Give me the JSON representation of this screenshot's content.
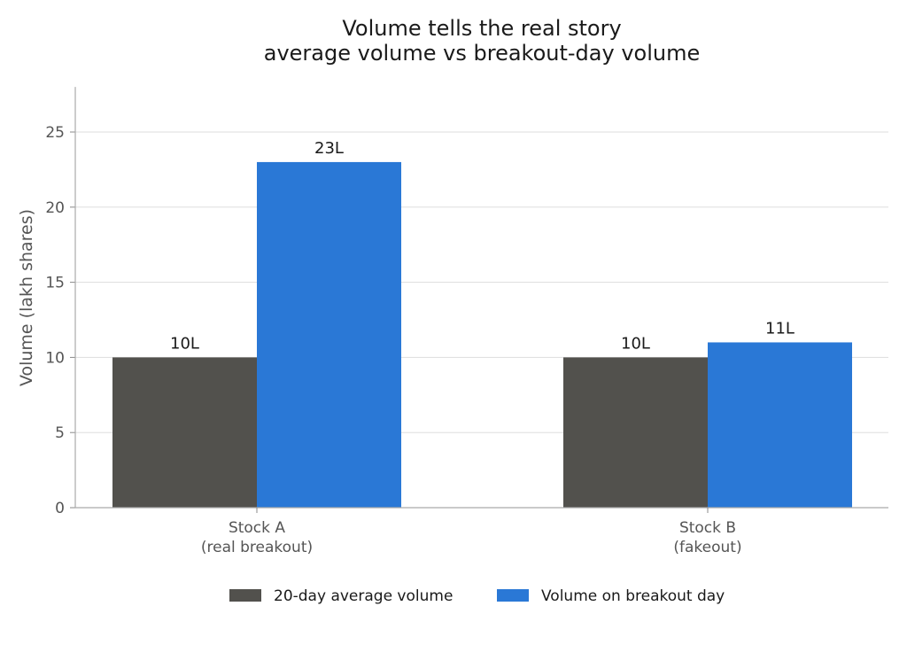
{
  "chart_data": {
    "type": "bar",
    "title_lines": [
      "Volume tells the real story",
      "average volume vs breakout-day volume"
    ],
    "xlabel": "",
    "ylabel": "Volume (lakh shares)",
    "ylim": [
      0,
      28
    ],
    "yticks": [
      0,
      5,
      10,
      15,
      20,
      25
    ],
    "grid": true,
    "legend_position": "bottom-center",
    "categories": [
      [
        "Stock A",
        "(real breakout)"
      ],
      [
        "Stock B",
        "(fakeout)"
      ]
    ],
    "series": [
      {
        "name": "20-day average volume",
        "color": "#52514d",
        "values": [
          10,
          10
        ],
        "labels": [
          "10L",
          "10L"
        ]
      },
      {
        "name": "Volume on breakout day",
        "color": "#2a78d6",
        "values": [
          23,
          11
        ],
        "labels": [
          "23L",
          "11L"
        ]
      }
    ]
  }
}
